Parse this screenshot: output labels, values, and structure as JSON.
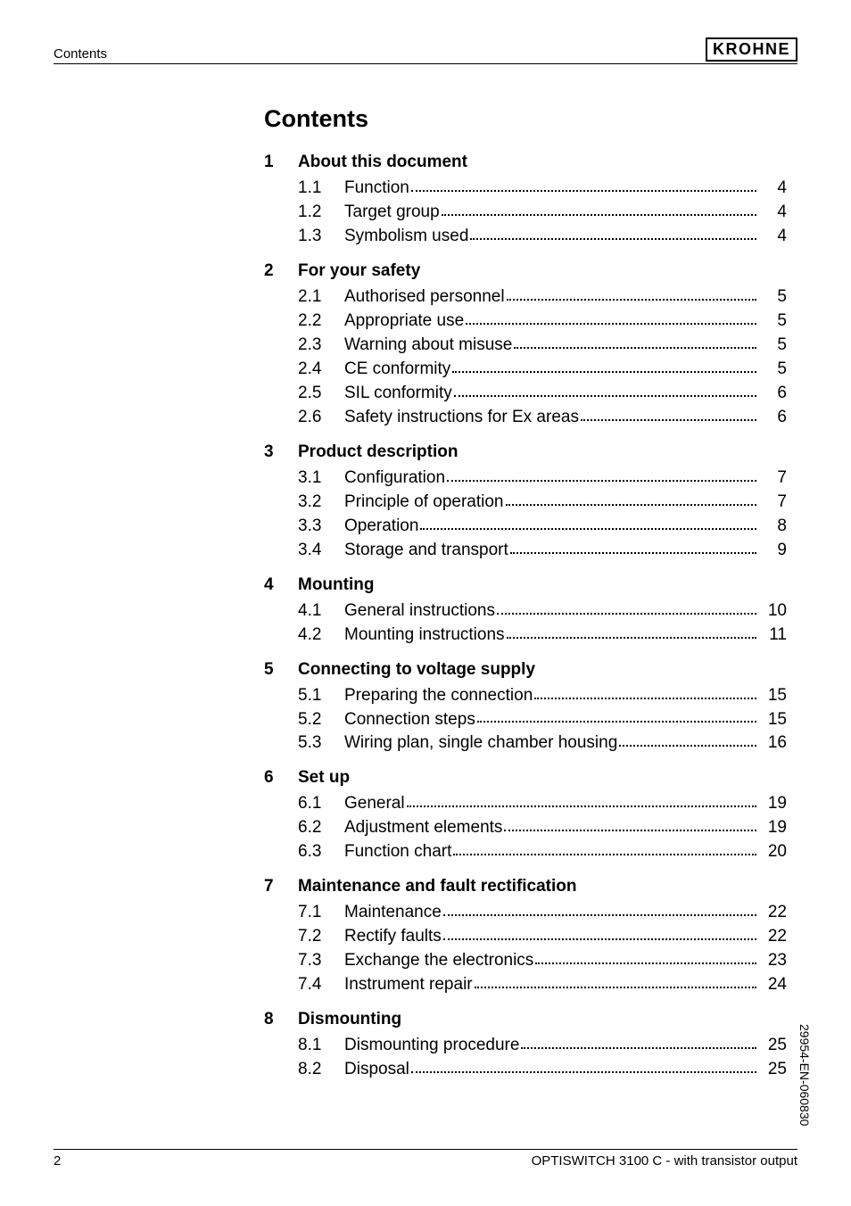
{
  "header": {
    "left": "Contents",
    "brand": "KROHNE"
  },
  "title": "Contents",
  "sections": [
    {
      "num": "1",
      "title": "About this document",
      "entries": [
        {
          "num": "1.1",
          "label": "Function",
          "page": "4"
        },
        {
          "num": "1.2",
          "label": "Target group",
          "page": "4"
        },
        {
          "num": "1.3",
          "label": "Symbolism used",
          "page": "4"
        }
      ]
    },
    {
      "num": "2",
      "title": "For your safety",
      "entries": [
        {
          "num": "2.1",
          "label": "Authorised personnel",
          "page": "5"
        },
        {
          "num": "2.2",
          "label": "Appropriate use",
          "page": "5"
        },
        {
          "num": "2.3",
          "label": "Warning about misuse",
          "page": "5"
        },
        {
          "num": "2.4",
          "label": "CE conformity",
          "page": "5"
        },
        {
          "num": "2.5",
          "label": "SIL conformity",
          "page": "6"
        },
        {
          "num": "2.6",
          "label": "Safety instructions for Ex areas",
          "page": "6"
        }
      ]
    },
    {
      "num": "3",
      "title": "Product description",
      "entries": [
        {
          "num": "3.1",
          "label": "Configuration",
          "page": "7"
        },
        {
          "num": "3.2",
          "label": "Principle of operation",
          "page": "7"
        },
        {
          "num": "3.3",
          "label": "Operation",
          "page": "8"
        },
        {
          "num": "3.4",
          "label": "Storage and transport",
          "page": "9"
        }
      ]
    },
    {
      "num": "4",
      "title": "Mounting",
      "entries": [
        {
          "num": "4.1",
          "label": "General instructions",
          "page": "10"
        },
        {
          "num": "4.2",
          "label": "Mounting instructions",
          "page": "11"
        }
      ]
    },
    {
      "num": "5",
      "title": "Connecting to voltage supply",
      "entries": [
        {
          "num": "5.1",
          "label": "Preparing the connection",
          "page": "15"
        },
        {
          "num": "5.2",
          "label": "Connection steps",
          "page": "15"
        },
        {
          "num": "5.3",
          "label": "Wiring plan, single chamber housing",
          "page": "16"
        }
      ]
    },
    {
      "num": "6",
      "title": "Set up",
      "entries": [
        {
          "num": "6.1",
          "label": "General",
          "page": "19"
        },
        {
          "num": "6.2",
          "label": "Adjustment elements",
          "page": "19"
        },
        {
          "num": "6.3",
          "label": "Function chart",
          "page": "20"
        }
      ]
    },
    {
      "num": "7",
      "title": "Maintenance and fault rectification",
      "entries": [
        {
          "num": "7.1",
          "label": "Maintenance",
          "page": "22"
        },
        {
          "num": "7.2",
          "label": "Rectify faults",
          "page": "22"
        },
        {
          "num": "7.3",
          "label": "Exchange the electronics",
          "page": "23"
        },
        {
          "num": "7.4",
          "label": "Instrument repair",
          "page": "24"
        }
      ]
    },
    {
      "num": "8",
      "title": "Dismounting",
      "entries": [
        {
          "num": "8.1",
          "label": "Dismounting procedure",
          "page": "25"
        },
        {
          "num": "8.2",
          "label": "Disposal",
          "page": "25"
        }
      ]
    }
  ],
  "side_code": "29954-EN-060830",
  "footer": {
    "page": "2",
    "product": "OPTISWITCH 3100 C - with transistor output"
  }
}
